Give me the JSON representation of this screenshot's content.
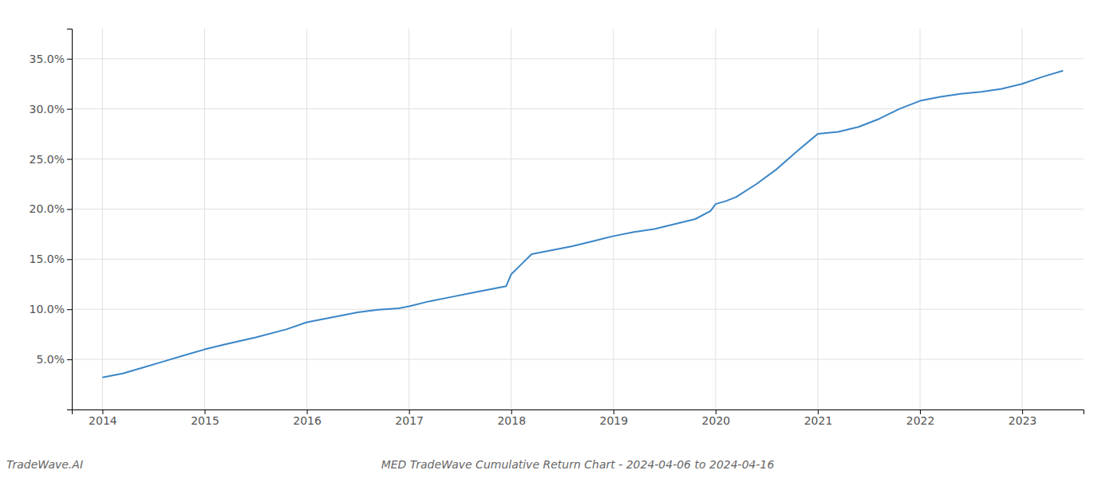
{
  "chart_data": {
    "type": "line",
    "title": "MED TradeWave Cumulative Return Chart - 2024-04-06 to 2024-04-16",
    "annotations": [
      "TradeWave.AI"
    ],
    "color": "#3a86c8",
    "grid": true,
    "x": [
      2014.0,
      2014.2,
      2014.4,
      2014.6,
      2014.8,
      2015.0,
      2015.2,
      2015.5,
      2015.8,
      2016.0,
      2016.2,
      2016.5,
      2016.7,
      2016.9,
      2017.0,
      2017.2,
      2017.4,
      2017.6,
      2017.8,
      2017.95,
      2018.0,
      2018.1,
      2018.2,
      2018.4,
      2018.6,
      2018.8,
      2019.0,
      2019.2,
      2019.4,
      2019.6,
      2019.8,
      2019.95,
      2020.0,
      2020.1,
      2020.2,
      2020.4,
      2020.6,
      2020.8,
      2021.0,
      2021.2,
      2021.4,
      2021.6,
      2021.8,
      2022.0,
      2022.2,
      2022.4,
      2022.6,
      2022.8,
      2023.0,
      2023.2,
      2023.4
    ],
    "values": [
      3.2,
      3.6,
      4.2,
      4.8,
      5.4,
      6.0,
      6.5,
      7.2,
      8.0,
      8.7,
      9.1,
      9.7,
      9.95,
      10.1,
      10.3,
      10.8,
      11.2,
      11.6,
      12.0,
      12.3,
      13.5,
      14.5,
      15.5,
      15.9,
      16.3,
      16.8,
      17.3,
      17.7,
      18.0,
      18.5,
      19.0,
      19.8,
      20.5,
      20.8,
      21.2,
      22.5,
      24.0,
      25.8,
      27.5,
      27.7,
      28.2,
      29.0,
      30.0,
      30.8,
      31.2,
      31.5,
      31.7,
      32.0,
      32.5,
      33.2,
      33.8
    ],
    "xlim": [
      2013.7,
      2023.6
    ],
    "ylim": [
      0,
      38
    ],
    "xticks": [
      2014,
      2015,
      2016,
      2017,
      2018,
      2019,
      2020,
      2021,
      2022,
      2023
    ],
    "yticks": [
      {
        "value": 5.0,
        "label": "5.0%"
      },
      {
        "value": 10.0,
        "label": "10.0%"
      },
      {
        "value": 15.0,
        "label": "15.0%"
      },
      {
        "value": 20.0,
        "label": "20.0%"
      },
      {
        "value": 25.0,
        "label": "25.0%"
      },
      {
        "value": 30.0,
        "label": "30.0%"
      },
      {
        "value": 35.0,
        "label": "35.0%"
      }
    ]
  }
}
